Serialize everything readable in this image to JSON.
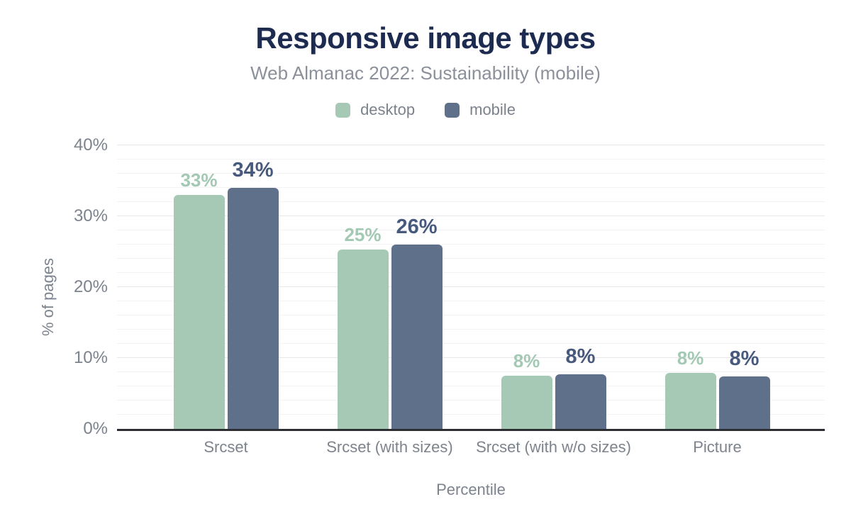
{
  "header": {
    "title": "Responsive image types",
    "subtitle": "Web Almanac 2022: Sustainability (mobile)"
  },
  "legend": [
    {
      "label": "desktop",
      "color": "#a5c9b5"
    },
    {
      "label": "mobile",
      "color": "#5f708a"
    }
  ],
  "colors": {
    "title": "#1d2b50",
    "subtitle_text": "#8b909a",
    "axis_text": "#7d838d",
    "axis_line": "#2d2e31",
    "gridline_major": "#e8e8ea",
    "gridline_minor": "#f3f3f5",
    "desktop_bar": "#a5c9b5",
    "desktop_label": "#a3c9b4",
    "mobile_bar": "#5f708a",
    "mobile_label": "#47597c"
  },
  "chart_data": {
    "type": "bar",
    "title": "Responsive image types",
    "subtitle": "Web Almanac 2022: Sustainability (mobile)",
    "categories": [
      "Srcset",
      "Srcset (with sizes)",
      "Srcset (with w/o sizes)",
      "Picture"
    ],
    "series": [
      {
        "name": "desktop",
        "color": "#a5c9b5",
        "label_color": "#a3c9b4",
        "values": [
          33,
          25,
          8,
          8
        ],
        "precise_values": [
          33,
          25.3,
          7.5,
          7.9
        ]
      },
      {
        "name": "mobile",
        "color": "#5f708a",
        "label_color": "#47597c",
        "values": [
          34,
          26,
          8,
          8
        ],
        "precise_values": [
          34,
          26,
          7.7,
          7.4
        ]
      }
    ],
    "value_suffix": "%",
    "xlabel": "Percentile",
    "ylabel": "% of pages",
    "ylim": [
      0,
      40
    ],
    "yticks": [
      0,
      10,
      20,
      30,
      40
    ],
    "ytick_labels": [
      "0%",
      "10%",
      "20%",
      "30%",
      "40%"
    ],
    "minor_grid_step": 2,
    "grid": true,
    "legend_position": "top"
  }
}
